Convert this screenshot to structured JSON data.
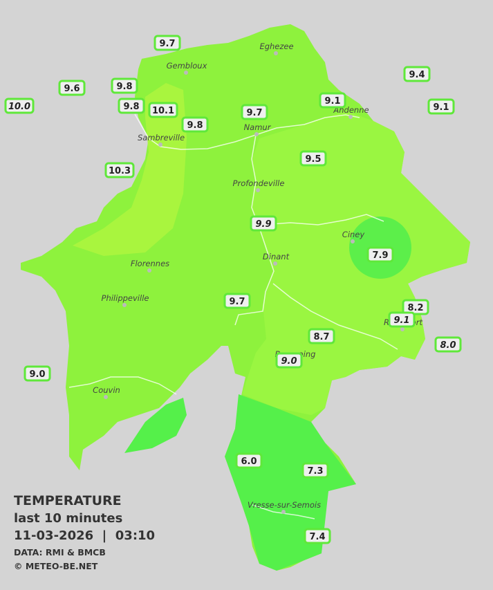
{
  "stations": [
    {
      "value": "9.7",
      "italic": false
    },
    {
      "value": "9.6",
      "italic": false
    },
    {
      "value": "9.8",
      "italic": false
    },
    {
      "value": "10.0",
      "italic": true
    },
    {
      "value": "9.8",
      "italic": false
    },
    {
      "value": "10.1",
      "italic": false
    },
    {
      "value": "9.8",
      "italic": false
    },
    {
      "value": "9.7",
      "italic": false
    },
    {
      "value": "9.1",
      "italic": false
    },
    {
      "value": "9.4",
      "italic": false
    },
    {
      "value": "9.1",
      "italic": false
    },
    {
      "value": "10.3",
      "italic": false
    },
    {
      "value": "9.5",
      "italic": false
    },
    {
      "value": "9.9",
      "italic": true
    },
    {
      "value": "7.9",
      "italic": false
    },
    {
      "value": "9.7",
      "italic": false
    },
    {
      "value": "8.2",
      "italic": false
    },
    {
      "value": "9.1",
      "italic": true
    },
    {
      "value": "8.7",
      "italic": false
    },
    {
      "value": "8.0",
      "italic": true
    },
    {
      "value": "9.0",
      "italic": true
    },
    {
      "value": "9.0",
      "italic": false
    },
    {
      "value": "6.0",
      "italic": false
    },
    {
      "value": "7.3",
      "italic": false
    },
    {
      "value": "7.4",
      "italic": false
    }
  ],
  "cities": [
    "Eghezee",
    "Gembloux",
    "Andenne",
    "Namur",
    "Sambreville",
    "Profondeville",
    "Ciney",
    "Florennes",
    "Dinant",
    "Philippeville",
    "Beauraing",
    "Rochefort",
    "Couvin",
    "Vresse-sur-Semois"
  ],
  "legend": {
    "title": "TEMPERATURE",
    "subtitle": "last 10 minutes",
    "datetime": "11-03-2026  |  03:10",
    "source": "DATA: RMI & BMCB",
    "copyright": "© METEO-BE.NET"
  }
}
